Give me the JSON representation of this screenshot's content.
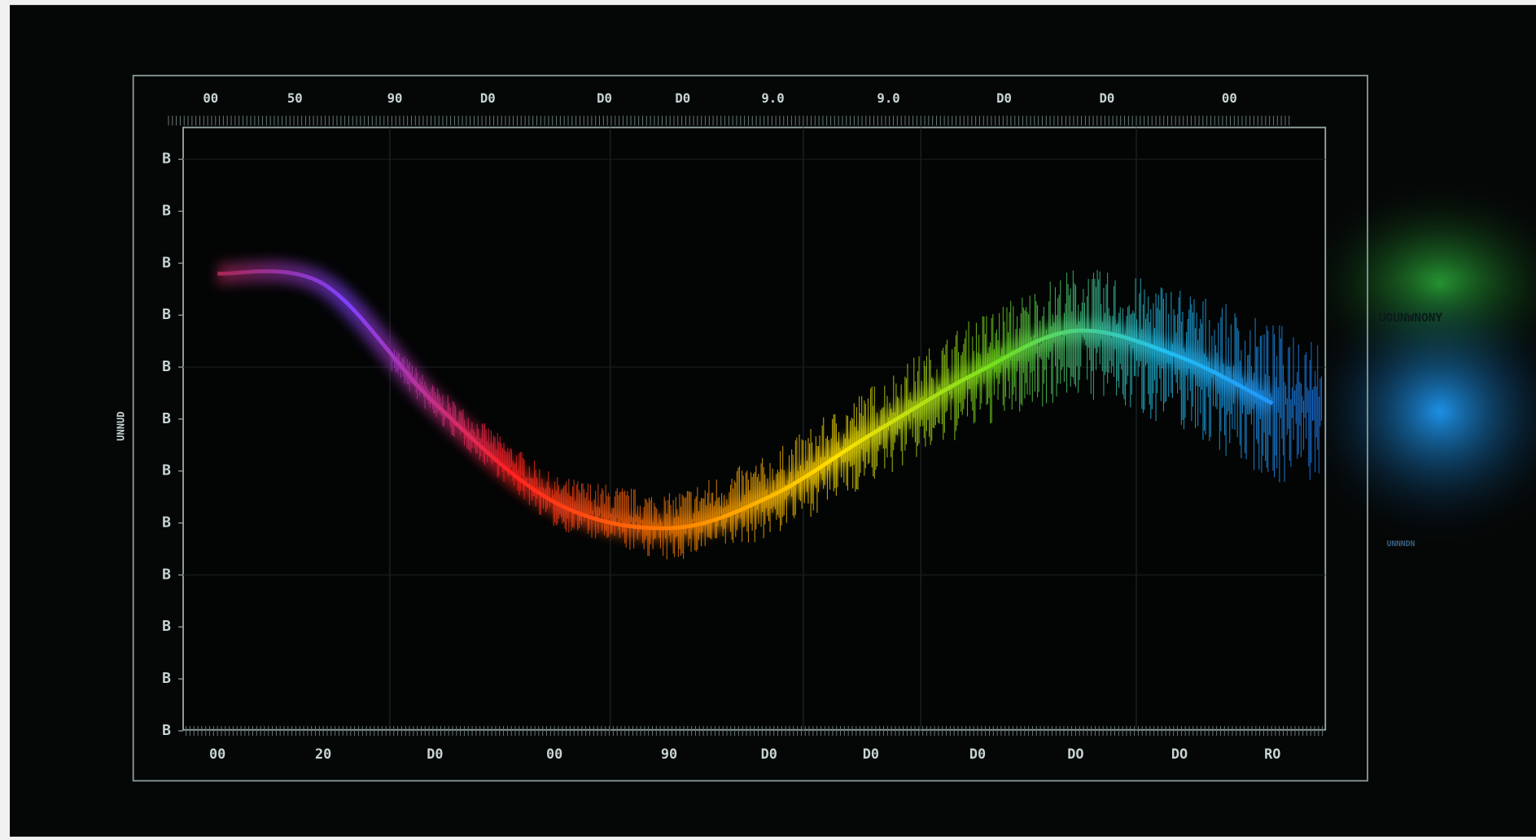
{
  "chart_data": {
    "type": "line",
    "ylabel": "UNNUD",
    "top_labels": [
      "00",
      "50",
      "90",
      "D0",
      "D0",
      "D0",
      "9.0",
      "9.0",
      "D0",
      "D0",
      "00"
    ],
    "categories": [
      "00",
      "20",
      "D0",
      "00",
      "90",
      "D0",
      "D0",
      "D0",
      "DO",
      "DO",
      "RO"
    ],
    "series": [
      {
        "name": "UOUNWNONY",
        "values": [
          8.8,
          8.6,
          6.3,
          4.4,
          3.9,
          4.5,
          5.7,
          6.9,
          7.7,
          7.2,
          6.3
        ]
      }
    ],
    "gradient": [
      "#b02020",
      "#8040ff",
      "#ff2020",
      "#ff8000",
      "#ffe000",
      "#70e020",
      "#20c0f0",
      "#2080ff"
    ],
    "ylim": [
      0,
      11.8
    ],
    "yticks": [
      {
        "value": 0,
        "label": "B"
      },
      {
        "value": 1,
        "label": "B"
      },
      {
        "value": 2,
        "label": "B"
      },
      {
        "value": 3,
        "label": "B"
      },
      {
        "value": 4,
        "label": "B"
      },
      {
        "value": 5,
        "label": "B"
      },
      {
        "value": 6,
        "label": "B"
      },
      {
        "value": 7,
        "label": "B"
      },
      {
        "value": 8,
        "label": "B"
      },
      {
        "value": 9,
        "label": "B"
      },
      {
        "value": 10,
        "label": "B"
      },
      {
        "value": 11,
        "label": "B"
      }
    ],
    "annotation": "UNNNDN",
    "grid": true
  }
}
